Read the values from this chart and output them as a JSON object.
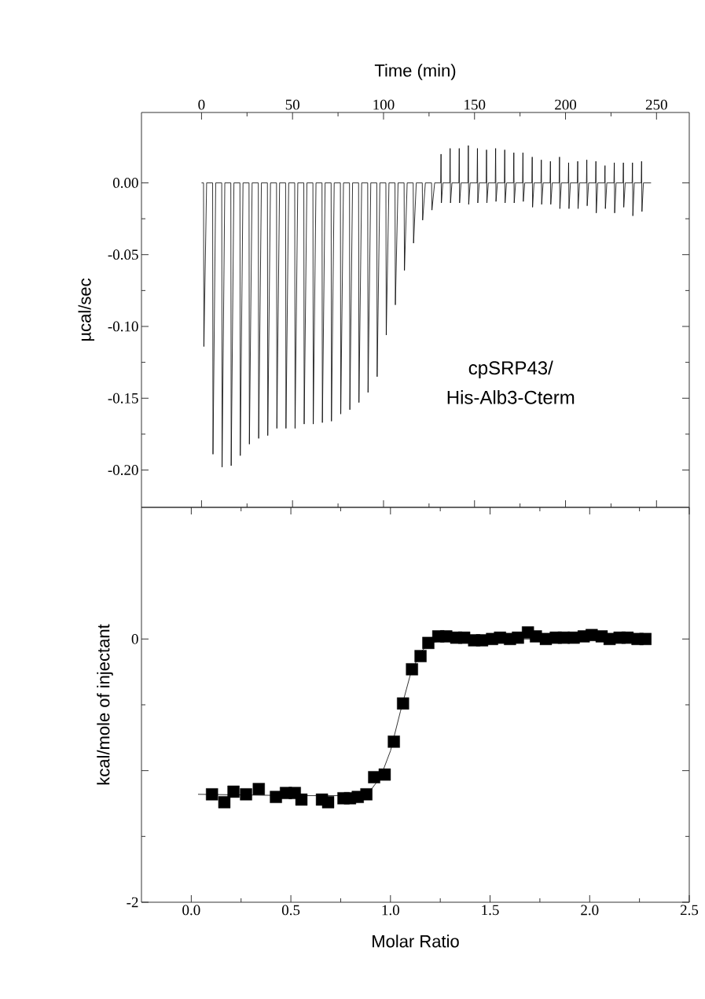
{
  "chart_data": [
    {
      "type": "line",
      "xlabel": "Time (min)",
      "ylabel": "µcal/sec",
      "annotations": [
        "cpSRP43/",
        "His-Alb3-Cterm"
      ],
      "xlim": [
        -33,
        268
      ],
      "xticks": [
        0,
        50,
        100,
        150,
        200,
        250
      ],
      "ylim": [
        -0.226,
        0.049
      ],
      "yticks": [
        {
          "value": 0,
          "label": "0.00"
        },
        {
          "value": -0.05,
          "label": "-0.05"
        },
        {
          "value": -0.1,
          "label": "-0.10"
        },
        {
          "value": -0.15,
          "label": "-0.15"
        },
        {
          "value": -0.2,
          "label": "-0.20"
        }
      ],
      "series": [
        {
          "color": "#000000",
          "x": [
            0,
            1.1,
            1.3,
            2.8,
            6.1,
            6.3,
            7.8,
            11.1,
            11.3,
            12.8,
            16.1,
            16.3,
            17.8,
            21.1,
            21.3,
            22.8,
            26.1,
            26.3,
            27.8,
            31.2,
            31.4,
            32.9,
            36.2,
            36.4,
            37.9,
            41.2,
            41.4,
            42.9,
            46.2,
            46.4,
            47.9,
            51.2,
            51.4,
            52.9,
            56.2,
            56.4,
            57.9,
            61.2,
            61.4,
            62.9,
            66.2,
            66.4,
            67.9,
            71.2,
            71.4,
            72.9,
            76.3,
            76.5,
            78.0,
            81.3,
            81.5,
            83.0,
            86.3,
            86.5,
            88.0,
            91.3,
            91.5,
            93.0,
            96.3,
            96.5,
            98.0,
            101.3,
            101.5,
            103.0,
            106.3,
            106.5,
            108.0,
            111.3,
            111.5,
            113.0,
            116.3,
            116.5,
            118.0,
            121.3,
            121.5,
            123.0,
            126.4,
            126.6,
            128.1,
            131.4,
            131.6,
            131.8,
            132.6,
            136.4,
            136.6,
            136.8,
            137.6,
            141.4,
            141.6,
            141.8,
            142.6,
            146.4,
            146.6,
            146.8,
            147.6,
            151.4,
            151.6,
            151.8,
            152.6,
            156.4,
            156.6,
            156.8,
            157.6,
            161.4,
            161.6,
            161.8,
            162.6,
            166.4,
            166.6,
            166.8,
            167.6,
            171.4,
            171.6,
            171.8,
            172.6,
            176.4,
            176.6,
            176.8,
            177.6,
            181.5,
            181.7,
            181.9,
            182.7,
            186.5,
            186.7,
            186.9,
            187.7,
            191.5,
            191.7,
            191.9,
            192.7,
            196.5,
            196.7,
            196.9,
            197.7,
            201.5,
            201.7,
            201.9,
            202.7,
            206.5,
            206.7,
            206.9,
            207.7,
            211.5,
            211.7,
            211.9,
            212.7,
            216.5,
            216.7,
            216.9,
            217.7,
            221.5,
            221.7,
            221.9,
            222.7,
            226.6,
            226.8,
            227.0,
            227.8,
            231.6,
            231.8,
            232.0,
            232.8,
            236.6,
            236.8,
            237.0,
            237.8,
            241.6,
            241.8,
            242.0,
            242.8,
            247
          ],
          "values": [
            0,
            0,
            -0.114,
            0,
            0,
            -0.189,
            0,
            0,
            -0.198,
            0,
            0,
            -0.197,
            0,
            0,
            -0.19,
            0,
            0,
            -0.182,
            0,
            0,
            -0.178,
            0,
            0,
            -0.176,
            0,
            0,
            -0.171,
            0,
            0,
            -0.171,
            0,
            0,
            -0.171,
            0,
            0,
            -0.168,
            0,
            0,
            -0.168,
            0,
            0,
            -0.167,
            0,
            0,
            -0.166,
            0,
            0,
            -0.161,
            0,
            0,
            -0.158,
            0,
            0,
            -0.153,
            0,
            0,
            -0.146,
            0,
            0,
            -0.135,
            0,
            0,
            -0.106,
            0,
            0,
            -0.085,
            0,
            0,
            -0.061,
            0,
            0,
            -0.042,
            0,
            0,
            -0.026,
            0,
            0,
            -0.019,
            0,
            0,
            0.02,
            -0.014,
            0,
            0,
            0.024,
            -0.014,
            0,
            0,
            0.024,
            -0.014,
            0,
            0,
            0.026,
            -0.015,
            0,
            0,
            0.024,
            -0.014,
            0,
            0,
            0.023,
            -0.014,
            0,
            0,
            0.024,
            -0.013,
            0,
            0,
            0.023,
            -0.014,
            0,
            0,
            0.021,
            -0.014,
            0,
            0,
            0.021,
            -0.013,
            0,
            0,
            0.018,
            -0.017,
            0,
            0,
            0.016,
            -0.015,
            0,
            0,
            0.015,
            -0.015,
            0,
            0,
            0.018,
            -0.018,
            0,
            0,
            0.014,
            -0.018,
            0,
            0,
            0.015,
            -0.018,
            0,
            0,
            0.016,
            -0.016,
            0,
            0,
            0.015,
            -0.021,
            0,
            0,
            0.012,
            -0.018,
            0,
            0,
            0.014,
            -0.021,
            0,
            0,
            0.014,
            -0.017,
            0,
            0,
            0.014,
            -0.023,
            0,
            0,
            0.015,
            -0.02,
            0,
            0
          ]
        }
      ]
    },
    {
      "type": "scatter",
      "xlabel": "Molar Ratio",
      "ylabel": "kcal/mole of injectant",
      "xlim": [
        -0.25,
        2.5
      ],
      "xticks": [
        {
          "value": 0,
          "label": "0.0"
        },
        {
          "value": 0.5,
          "label": "0.5"
        },
        {
          "value": 1,
          "label": "1.0"
        },
        {
          "value": 1.5,
          "label": "1.5"
        },
        {
          "value": 2,
          "label": "2.0"
        },
        {
          "value": 2.5,
          "label": "2.5"
        }
      ],
      "ylim": [
        -2,
        1
      ],
      "yticks": [
        -2,
        {
          "value": -1,
          "label": null
        },
        0
      ],
      "series": [
        {
          "type": "scatter",
          "marker": "square",
          "color": "#000000",
          "x": [
            0.104,
            0.166,
            0.212,
            0.275,
            0.339,
            0.425,
            0.475,
            0.52,
            0.553,
            0.656,
            0.687,
            0.764,
            0.797,
            0.836,
            0.879,
            0.918,
            0.971,
            1.017,
            1.063,
            1.108,
            1.151,
            1.19,
            1.24,
            1.28,
            1.33,
            1.37,
            1.42,
            1.46,
            1.51,
            1.55,
            1.6,
            1.64,
            1.69,
            1.73,
            1.78,
            1.83,
            1.87,
            1.92,
            1.97,
            2.01,
            2.06,
            2.1,
            2.15,
            2.19,
            2.24,
            2.28
          ],
          "values": [
            -1.18,
            -1.24,
            -1.16,
            -1.18,
            -1.14,
            -1.2,
            -1.17,
            -1.17,
            -1.22,
            -1.22,
            -1.24,
            -1.21,
            -1.21,
            -1.2,
            -1.18,
            -1.05,
            -1.03,
            -0.78,
            -0.49,
            -0.23,
            -0.13,
            -0.03,
            0.02,
            0.02,
            0.01,
            0.01,
            -0.01,
            -0.01,
            0,
            0.01,
            0,
            0.01,
            0.05,
            0.02,
            0,
            0.01,
            0.01,
            0.01,
            0.02,
            0.03,
            0.02,
            0,
            0.01,
            0.01,
            0,
            0
          ]
        },
        {
          "type": "line",
          "color": "#000000",
          "x": [
            0.034,
            0.5,
            0.85,
            0.9,
            0.95,
            1.0,
            1.05,
            1.1,
            1.15,
            1.2,
            1.3,
            2.3
          ],
          "values": [
            -1.18,
            -1.19,
            -1.19,
            -1.15,
            -1.05,
            -0.85,
            -0.55,
            -0.27,
            -0.1,
            -0.03,
            0,
            0
          ]
        }
      ]
    }
  ]
}
